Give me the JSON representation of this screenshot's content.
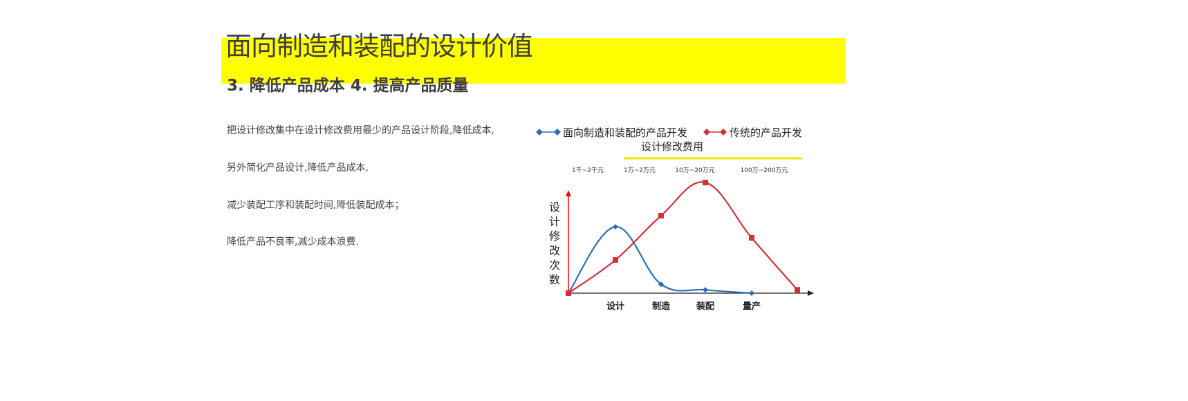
{
  "colors": {
    "highlight": "#ffff00",
    "dfma": "#2e6db4",
    "traditional": "#d0313a",
    "axis_y": "#ff0000"
  },
  "header": {
    "title": "面向制造和装配的设计价值",
    "subtitle": "3. 降低产品成本   4. 提高产品质量"
  },
  "body": {
    "lines": [
      "把设计修改集中在设计修改费用最少的产品设计阶段,降低成本,",
      "另外简化产品设计,降低产品成本,",
      "减少装配工序和装配时间,降低装配成本；",
      "降低产品不良率,减少成本浪费."
    ]
  },
  "chart_data": {
    "type": "line",
    "legend": [
      "面向制造和装配的产品开发",
      "传统的产品开发"
    ],
    "legend_placement": "top",
    "cost_axis_label": "设计修改费用",
    "cost_labels": [
      "1千~2千元",
      "1万~2万元",
      "10万~20万元",
      "100万~200万元"
    ],
    "ylabel": "设计修改次数",
    "categories": [
      "设计",
      "制造",
      "装配",
      "量产"
    ],
    "x": [
      0,
      1,
      2,
      3,
      4,
      5
    ],
    "series": [
      {
        "name": "面向制造和装配的产品开发",
        "marker": "diamond",
        "x": [
          0,
          1,
          2,
          3,
          4
        ],
        "values": [
          0,
          60,
          8,
          3,
          0
        ]
      },
      {
        "name": "传统的产品开发",
        "marker": "square",
        "x": [
          0,
          1,
          2,
          3,
          4,
          5
        ],
        "values": [
          0,
          30,
          70,
          100,
          50,
          3
        ]
      }
    ],
    "ylim": [
      0,
      100
    ],
    "grid": false
  }
}
